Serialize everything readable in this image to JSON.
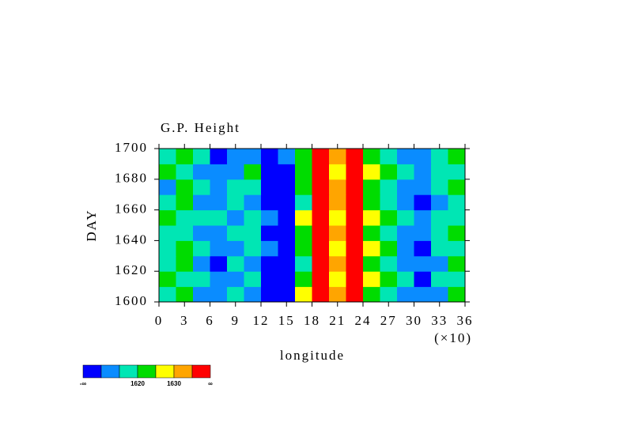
{
  "chart_data": {
    "type": "heatmap",
    "title": "G.P. Height",
    "xlabel": "longitude",
    "xscale_label": "(×10)",
    "ylabel": "DAY",
    "xlim": [
      0,
      36
    ],
    "xticks": [
      0,
      3,
      6,
      9,
      12,
      15,
      18,
      21,
      24,
      27,
      30,
      33,
      36
    ],
    "ylim": [
      1600,
      1700
    ],
    "yticks": [
      1600,
      1620,
      1640,
      1660,
      1680,
      1700
    ],
    "x": [
      1,
      3,
      5,
      7,
      9,
      11,
      13,
      15,
      17,
      19,
      21,
      23,
      25,
      27,
      29,
      31,
      33,
      35
    ],
    "y": [
      1605,
      1615,
      1625,
      1635,
      1645,
      1655,
      1665,
      1675,
      1685,
      1695
    ],
    "z": [
      [
        1616,
        1622,
        1613,
        1610,
        1617,
        1613,
        1606,
        1604,
        1626,
        1636,
        1633,
        1638,
        1621,
        1617,
        1610,
        1613,
        1614,
        1621
      ],
      [
        1620,
        1618,
        1617,
        1614,
        1611,
        1618,
        1609,
        1605,
        1620,
        1640,
        1628,
        1641,
        1626,
        1622,
        1615,
        1609,
        1619,
        1617
      ],
      [
        1615,
        1621,
        1612,
        1609,
        1616,
        1614,
        1604,
        1607,
        1619,
        1637,
        1631,
        1639,
        1622,
        1616,
        1611,
        1612,
        1613,
        1620
      ],
      [
        1619,
        1624,
        1616,
        1613,
        1612,
        1619,
        1610,
        1608,
        1623,
        1639,
        1627,
        1642,
        1625,
        1620,
        1614,
        1608,
        1617,
        1618
      ],
      [
        1617,
        1619,
        1614,
        1611,
        1615,
        1615,
        1607,
        1606,
        1621,
        1636,
        1632,
        1640,
        1623,
        1618,
        1612,
        1611,
        1615,
        1622
      ],
      [
        1621,
        1617,
        1618,
        1615,
        1613,
        1617,
        1611,
        1609,
        1625,
        1641,
        1629,
        1638,
        1627,
        1621,
        1616,
        1613,
        1618,
        1616
      ],
      [
        1618,
        1623,
        1613,
        1610,
        1616,
        1612,
        1606,
        1605,
        1618,
        1638,
        1634,
        1641,
        1620,
        1619,
        1611,
        1609,
        1612,
        1619
      ],
      [
        1614,
        1620,
        1616,
        1612,
        1618,
        1616,
        1603,
        1604,
        1622,
        1637,
        1630,
        1639,
        1624,
        1617,
        1613,
        1612,
        1616,
        1621
      ],
      [
        1620,
        1618,
        1611,
        1613,
        1614,
        1620,
        1609,
        1607,
        1624,
        1640,
        1628,
        1637,
        1626,
        1622,
        1615,
        1610,
        1619,
        1618
      ],
      [
        1617,
        1622,
        1615,
        1609,
        1612,
        1614,
        1608,
        1610,
        1621,
        1638,
        1633,
        1640,
        1622,
        1618,
        1612,
        1614,
        1617,
        1620
      ]
    ],
    "colorbar": {
      "levels": [
        1610,
        1615,
        1620,
        1625,
        1630,
        1635
      ],
      "colors": [
        "#0000ff",
        "#0a8cff",
        "#00e6b4",
        "#00dc00",
        "#ffff00",
        "#ffa500",
        "#ff0000"
      ],
      "ticks": [
        1620,
        1630
      ],
      "ends": [
        "-∞",
        "∞"
      ]
    }
  }
}
